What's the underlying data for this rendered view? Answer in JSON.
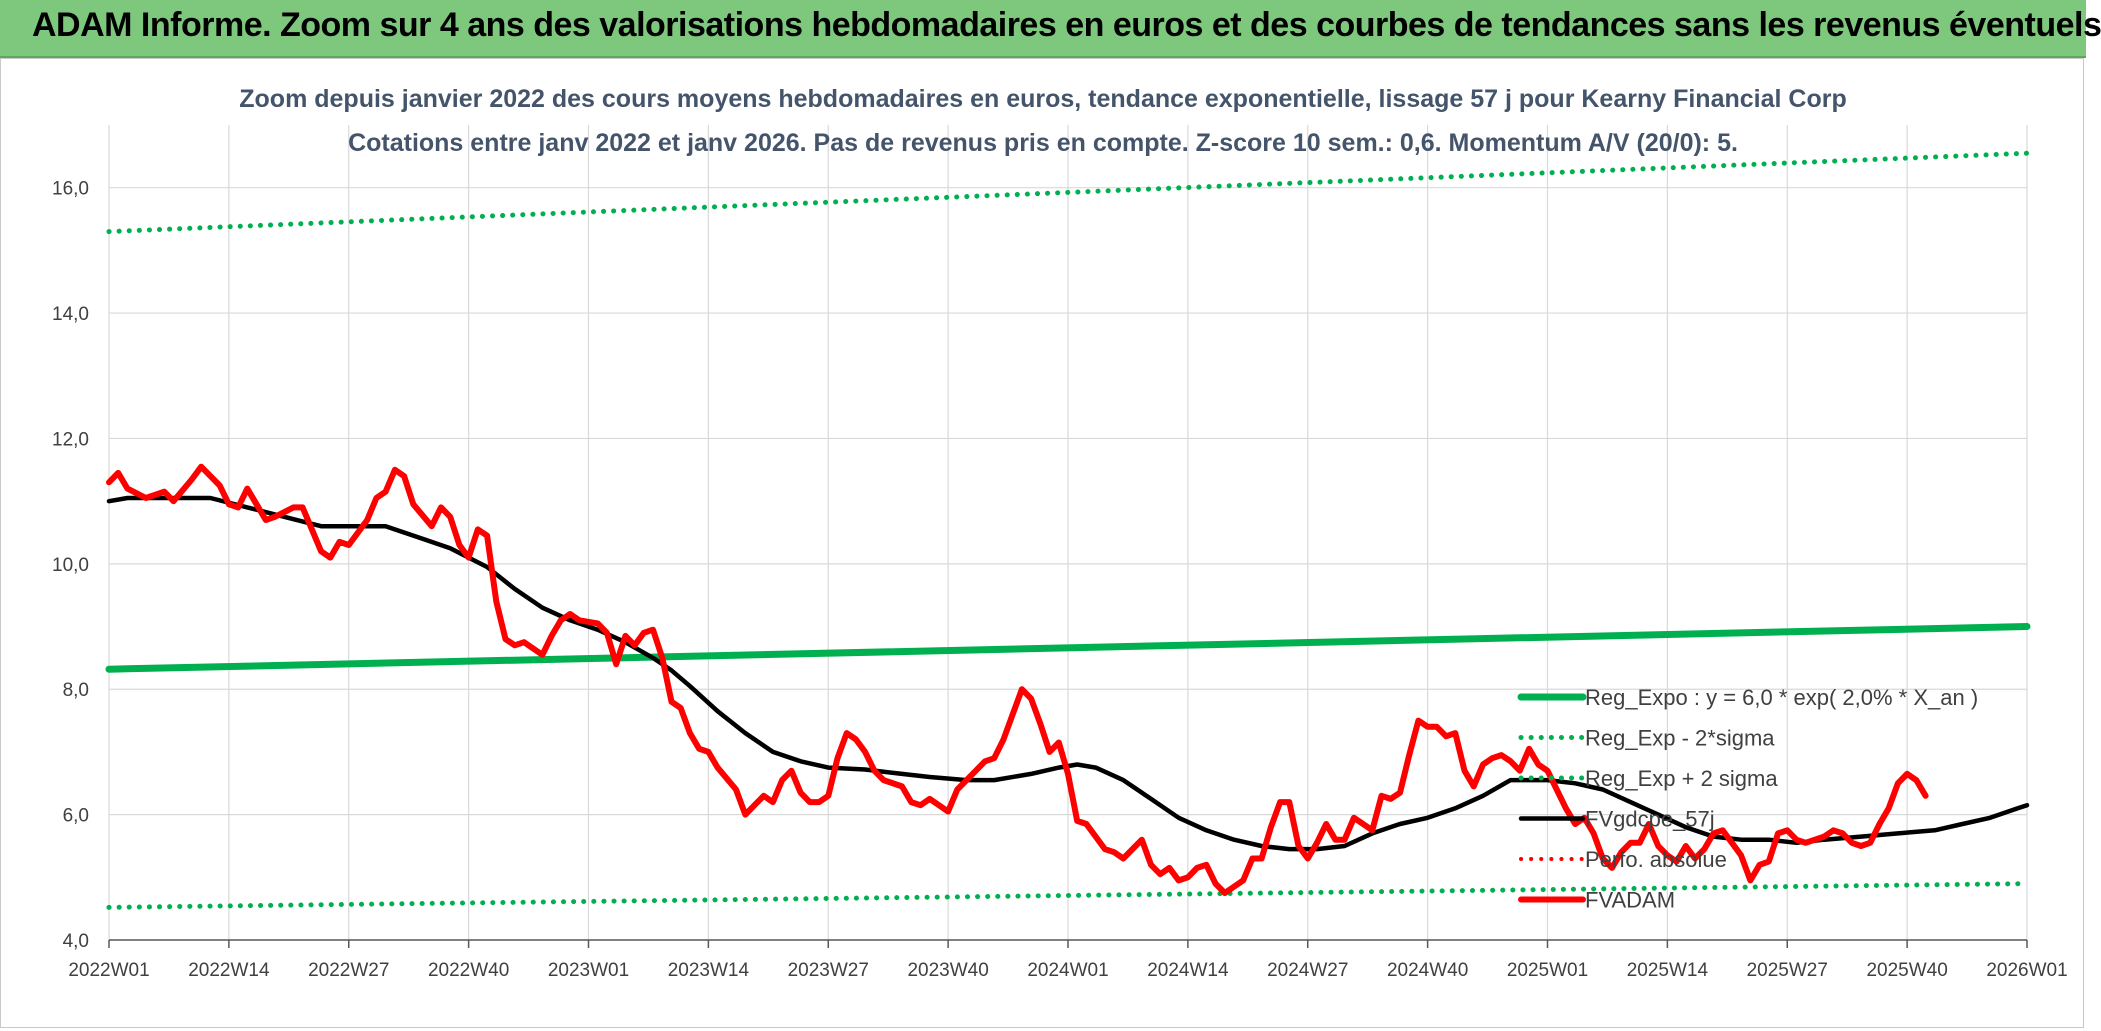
{
  "banner": {
    "title": "ADAM Informe. Zoom sur 4 ans des valorisations hebdomadaires en euros et des courbes de tendances sans les revenus éventuels"
  },
  "chart_data": {
    "type": "line",
    "title": "Zoom depuis janvier 2022 des cours moyens hebdomadaires en euros, tendance exponentielle, lissage 57 j pour Kearny Financial Corp",
    "subtitle": "Cotations entre janv 2022 et janv 2026. Pas de revenus pris en compte. Z-score 10 sem.: 0,6. Momentum A/V (20/0): 5.",
    "xlabel": "",
    "ylabel": "",
    "ylim": [
      4.0,
      17.0
    ],
    "y_ticks": [
      "4,0",
      "6,0",
      "8,0",
      "10,0",
      "12,0",
      "14,0",
      "16,0"
    ],
    "x_ticks": [
      "2022W01",
      "2022W14",
      "2022W27",
      "2022W40",
      "2023W01",
      "2023W14",
      "2023W27",
      "2023W40",
      "2024W01",
      "2024W14",
      "2024W27",
      "2024W40",
      "2025W01",
      "2025W14",
      "2025W27",
      "2025W40",
      "2026W01"
    ],
    "grid": true,
    "legend_position": "right",
    "series": [
      {
        "name": "Reg_Expo : y = 6,0 * exp( 2,0% *  X_an )",
        "color": "#00b050",
        "style": "solid",
        "points": [
          [
            "2022W01",
            8.32
          ],
          [
            "2026W01",
            9.0
          ]
        ]
      },
      {
        "name": "Reg_Exp - 2*sigma",
        "color": "#00b050",
        "style": "dotted",
        "points": [
          [
            "2022W01",
            4.52
          ],
          [
            "2026W01",
            4.9
          ]
        ]
      },
      {
        "name": "Reg_Exp + 2 sigma",
        "color": "#00b050",
        "style": "dotted",
        "points": [
          [
            "2022W01",
            15.3
          ],
          [
            "2026W01",
            16.55
          ]
        ]
      },
      {
        "name": "FVgdcpe_57j",
        "color": "#000000",
        "style": "solid",
        "points": [
          [
            "2022W01",
            11.0
          ],
          [
            "2022W03",
            11.05
          ],
          [
            "2022W07",
            11.05
          ],
          [
            "2022W12",
            11.05
          ],
          [
            "2022W16",
            10.9
          ],
          [
            "2022W20",
            10.75
          ],
          [
            "2022W24",
            10.6
          ],
          [
            "2022W28",
            10.6
          ],
          [
            "2022W31",
            10.6
          ],
          [
            "2022W35",
            10.4
          ],
          [
            "2022W38",
            10.25
          ],
          [
            "2022W42",
            9.95
          ],
          [
            "2022W45",
            9.6
          ],
          [
            "2022W48",
            9.3
          ],
          [
            "2022W51",
            9.1
          ],
          [
            "2023W02",
            8.95
          ],
          [
            "2023W05",
            8.75
          ],
          [
            "2023W08",
            8.5
          ],
          [
            "2023W10",
            8.3
          ],
          [
            "2023W12",
            8.05
          ],
          [
            "2023W15",
            7.65
          ],
          [
            "2023W18",
            7.3
          ],
          [
            "2023W21",
            7.0
          ],
          [
            "2023W24",
            6.85
          ],
          [
            "2023W27",
            6.75
          ],
          [
            "2023W31",
            6.72
          ],
          [
            "2023W35",
            6.65
          ],
          [
            "2023W38",
            6.6
          ],
          [
            "2023W42",
            6.55
          ],
          [
            "2023W45",
            6.55
          ],
          [
            "2023W49",
            6.65
          ],
          [
            "2023W52",
            6.75
          ],
          [
            "2024W02",
            6.8
          ],
          [
            "2024W04",
            6.75
          ],
          [
            "2024W07",
            6.55
          ],
          [
            "2024W10",
            6.25
          ],
          [
            "2024W13",
            5.95
          ],
          [
            "2024W16",
            5.75
          ],
          [
            "2024W19",
            5.6
          ],
          [
            "2024W22",
            5.5
          ],
          [
            "2024W25",
            5.45
          ],
          [
            "2024W28",
            5.45
          ],
          [
            "2024W31",
            5.5
          ],
          [
            "2024W34",
            5.7
          ],
          [
            "2024W37",
            5.85
          ],
          [
            "2024W40",
            5.95
          ],
          [
            "2024W43",
            6.1
          ],
          [
            "2024W46",
            6.3
          ],
          [
            "2024W49",
            6.55
          ],
          [
            "2025W01",
            6.55
          ],
          [
            "2025W04",
            6.5
          ],
          [
            "2025W07",
            6.4
          ],
          [
            "2025W10",
            6.2
          ],
          [
            "2025W13",
            6.0
          ],
          [
            "2025W16",
            5.8
          ],
          [
            "2025W19",
            5.65
          ],
          [
            "2025W22",
            5.6
          ],
          [
            "2025W25",
            5.6
          ],
          [
            "2025W28",
            5.55
          ],
          [
            "2025W31",
            5.6
          ],
          [
            "2025W35",
            5.65
          ],
          [
            "2025W39",
            5.7
          ],
          [
            "2025W43",
            5.75
          ],
          [
            "2025W46",
            5.85
          ],
          [
            "2025W49",
            5.95
          ],
          [
            "2025W52",
            6.1
          ],
          [
            "2026W01",
            6.15
          ]
        ]
      },
      {
        "name": "Perfo. absolue",
        "color": "#ff0000",
        "style": "dotted",
        "points": []
      },
      {
        "name": "FVADAM",
        "color": "#ff0000",
        "style": "solid",
        "points": [
          [
            "2022W01",
            11.3
          ],
          [
            "2022W02",
            11.45
          ],
          [
            "2022W03",
            11.2
          ],
          [
            "2022W05",
            11.05
          ],
          [
            "2022W07",
            11.15
          ],
          [
            "2022W08",
            11.0
          ],
          [
            "2022W10",
            11.35
          ],
          [
            "2022W11",
            11.55
          ],
          [
            "2022W13",
            11.25
          ],
          [
            "2022W14",
            10.95
          ],
          [
            "2022W15",
            10.9
          ],
          [
            "2022W16",
            11.2
          ],
          [
            "2022W18",
            10.7
          ],
          [
            "2022W19",
            10.75
          ],
          [
            "2022W21",
            10.9
          ],
          [
            "2022W22",
            10.9
          ],
          [
            "2022W24",
            10.2
          ],
          [
            "2022W25",
            10.1
          ],
          [
            "2022W26",
            10.35
          ],
          [
            "2022W27",
            10.3
          ],
          [
            "2022W29",
            10.7
          ],
          [
            "2022W30",
            11.05
          ],
          [
            "2022W31",
            11.15
          ],
          [
            "2022W32",
            11.5
          ],
          [
            "2022W33",
            11.4
          ],
          [
            "2022W34",
            10.95
          ],
          [
            "2022W36",
            10.6
          ],
          [
            "2022W37",
            10.9
          ],
          [
            "2022W38",
            10.75
          ],
          [
            "2022W39",
            10.3
          ],
          [
            "2022W40",
            10.1
          ],
          [
            "2022W41",
            10.55
          ],
          [
            "2022W42",
            10.45
          ],
          [
            "2022W43",
            9.4
          ],
          [
            "2022W44",
            8.8
          ],
          [
            "2022W45",
            8.7
          ],
          [
            "2022W46",
            8.75
          ],
          [
            "2022W48",
            8.55
          ],
          [
            "2022W49",
            8.85
          ],
          [
            "2022W50",
            9.1
          ],
          [
            "2022W51",
            9.2
          ],
          [
            "2022W52",
            9.1
          ],
          [
            "2023W02",
            9.05
          ],
          [
            "2023W03",
            8.9
          ],
          [
            "2023W04",
            8.4
          ],
          [
            "2023W05",
            8.85
          ],
          [
            "2023W06",
            8.7
          ],
          [
            "2023W07",
            8.9
          ],
          [
            "2023W08",
            8.95
          ],
          [
            "2023W09",
            8.5
          ],
          [
            "2023W10",
            7.8
          ],
          [
            "2023W11",
            7.7
          ],
          [
            "2023W12",
            7.3
          ],
          [
            "2023W13",
            7.05
          ],
          [
            "2023W14",
            7.0
          ],
          [
            "2023W15",
            6.75
          ],
          [
            "2023W17",
            6.4
          ],
          [
            "2023W18",
            6.0
          ],
          [
            "2023W19",
            6.15
          ],
          [
            "2023W20",
            6.3
          ],
          [
            "2023W21",
            6.2
          ],
          [
            "2023W22",
            6.55
          ],
          [
            "2023W23",
            6.7
          ],
          [
            "2023W24",
            6.35
          ],
          [
            "2023W25",
            6.2
          ],
          [
            "2023W26",
            6.2
          ],
          [
            "2023W27",
            6.3
          ],
          [
            "2023W28",
            6.9
          ],
          [
            "2023W29",
            7.3
          ],
          [
            "2023W30",
            7.2
          ],
          [
            "2023W31",
            7.0
          ],
          [
            "2023W32",
            6.7
          ],
          [
            "2023W33",
            6.55
          ],
          [
            "2023W35",
            6.45
          ],
          [
            "2023W36",
            6.2
          ],
          [
            "2023W37",
            6.15
          ],
          [
            "2023W38",
            6.25
          ],
          [
            "2023W39",
            6.15
          ],
          [
            "2023W40",
            6.05
          ],
          [
            "2023W41",
            6.4
          ],
          [
            "2023W42",
            6.55
          ],
          [
            "2023W44",
            6.85
          ],
          [
            "2023W45",
            6.9
          ],
          [
            "2023W46",
            7.2
          ],
          [
            "2023W47",
            7.6
          ],
          [
            "2023W48",
            8.0
          ],
          [
            "2023W49",
            7.85
          ],
          [
            "2023W50",
            7.45
          ],
          [
            "2023W51",
            7.0
          ],
          [
            "2023W52",
            7.15
          ],
          [
            "2024W01",
            6.65
          ],
          [
            "2024W02",
            5.9
          ],
          [
            "2024W03",
            5.85
          ],
          [
            "2024W04",
            5.65
          ],
          [
            "2024W05",
            5.45
          ],
          [
            "2024W06",
            5.4
          ],
          [
            "2024W07",
            5.3
          ],
          [
            "2024W08",
            5.45
          ],
          [
            "2024W09",
            5.6
          ],
          [
            "2024W10",
            5.2
          ],
          [
            "2024W11",
            5.05
          ],
          [
            "2024W12",
            5.15
          ],
          [
            "2024W13",
            4.95
          ],
          [
            "2024W14",
            5.0
          ],
          [
            "2024W15",
            5.15
          ],
          [
            "2024W16",
            5.2
          ],
          [
            "2024W17",
            4.9
          ],
          [
            "2024W18",
            4.75
          ],
          [
            "2024W19",
            4.85
          ],
          [
            "2024W20",
            4.95
          ],
          [
            "2024W21",
            5.3
          ],
          [
            "2024W22",
            5.3
          ],
          [
            "2024W23",
            5.8
          ],
          [
            "2024W24",
            6.2
          ],
          [
            "2024W25",
            6.2
          ],
          [
            "2024W26",
            5.5
          ],
          [
            "2024W27",
            5.3
          ],
          [
            "2024W28",
            5.55
          ],
          [
            "2024W29",
            5.85
          ],
          [
            "2024W30",
            5.6
          ],
          [
            "2024W31",
            5.6
          ],
          [
            "2024W32",
            5.95
          ],
          [
            "2024W33",
            5.85
          ],
          [
            "2024W34",
            5.75
          ],
          [
            "2024W35",
            6.3
          ],
          [
            "2024W36",
            6.25
          ],
          [
            "2024W37",
            6.35
          ],
          [
            "2024W38",
            6.95
          ],
          [
            "2024W39",
            7.5
          ],
          [
            "2024W40",
            7.4
          ],
          [
            "2024W41",
            7.4
          ],
          [
            "2024W42",
            7.25
          ],
          [
            "2024W43",
            7.3
          ],
          [
            "2024W44",
            6.7
          ],
          [
            "2024W45",
            6.45
          ],
          [
            "2024W46",
            6.8
          ],
          [
            "2024W47",
            6.9
          ],
          [
            "2024W48",
            6.95
          ],
          [
            "2024W49",
            6.85
          ],
          [
            "2024W50",
            6.7
          ],
          [
            "2024W51",
            7.05
          ],
          [
            "2024W52",
            6.8
          ],
          [
            "2025W01",
            6.7
          ],
          [
            "2025W02",
            6.4
          ],
          [
            "2025W03",
            6.1
          ],
          [
            "2025W04",
            5.85
          ],
          [
            "2025W05",
            5.95
          ],
          [
            "2025W06",
            5.7
          ],
          [
            "2025W07",
            5.3
          ],
          [
            "2025W08",
            5.15
          ],
          [
            "2025W09",
            5.4
          ],
          [
            "2025W10",
            5.55
          ],
          [
            "2025W11",
            5.55
          ],
          [
            "2025W12",
            5.85
          ],
          [
            "2025W13",
            5.5
          ],
          [
            "2025W14",
            5.35
          ],
          [
            "2025W15",
            5.25
          ],
          [
            "2025W16",
            5.5
          ],
          [
            "2025W17",
            5.3
          ],
          [
            "2025W18",
            5.45
          ],
          [
            "2025W19",
            5.7
          ],
          [
            "2025W20",
            5.75
          ],
          [
            "2025W21",
            5.55
          ],
          [
            "2025W22",
            5.35
          ],
          [
            "2025W23",
            4.95
          ],
          [
            "2025W24",
            5.2
          ],
          [
            "2025W25",
            5.25
          ],
          [
            "2025W26",
            5.7
          ],
          [
            "2025W27",
            5.75
          ],
          [
            "2025W28",
            5.6
          ],
          [
            "2025W29",
            5.55
          ],
          [
            "2025W30",
            5.6
          ],
          [
            "2025W31",
            5.65
          ],
          [
            "2025W32",
            5.75
          ],
          [
            "2025W33",
            5.7
          ],
          [
            "2025W34",
            5.55
          ],
          [
            "2025W35",
            5.5
          ],
          [
            "2025W36",
            5.55
          ],
          [
            "2025W37",
            5.85
          ],
          [
            "2025W38",
            6.1
          ],
          [
            "2025W39",
            6.5
          ],
          [
            "2025W40",
            6.65
          ],
          [
            "2025W41",
            6.55
          ],
          [
            "2025W42",
            6.3
          ]
        ]
      }
    ]
  }
}
